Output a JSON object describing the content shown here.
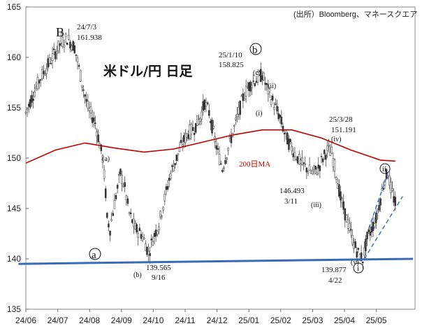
{
  "chart_data": {
    "type": "candlestick",
    "title": "米ドル/円 日足",
    "source": "(出所）Bloomberg、マネースクエア",
    "ylim": [
      135,
      165
    ],
    "yticks": [
      135,
      140,
      145,
      150,
      155,
      160,
      165
    ],
    "xticks": [
      "24/06",
      "24/07",
      "24/08",
      "24/09",
      "24/10",
      "24/11",
      "24/12",
      "25/01",
      "25/02",
      "25/03",
      "25/04",
      "25/05"
    ],
    "price_path": [
      [
        0,
        154.5
      ],
      [
        4,
        156.0
      ],
      [
        10,
        158.0
      ],
      [
        16,
        159.5
      ],
      [
        20,
        160.5
      ],
      [
        24,
        161.5
      ],
      [
        28,
        161.9
      ],
      [
        33,
        161.0
      ],
      [
        38,
        157.5
      ],
      [
        42,
        155.0
      ],
      [
        47,
        153.5
      ],
      [
        52,
        150.0
      ],
      [
        54,
        146.5
      ],
      [
        55,
        144.0
      ],
      [
        57,
        143.0
      ],
      [
        60,
        145.5
      ],
      [
        64,
        148.5
      ],
      [
        67,
        147.0
      ],
      [
        70,
        144.5
      ],
      [
        74,
        143.0
      ],
      [
        78,
        142.5
      ],
      [
        81,
        141.5
      ],
      [
        83,
        140.5
      ],
      [
        86,
        142.0
      ],
      [
        90,
        143.5
      ],
      [
        94,
        146.0
      ],
      [
        98,
        148.5
      ],
      [
        102,
        150.0
      ],
      [
        106,
        151.5
      ],
      [
        110,
        152.5
      ],
      [
        114,
        153.0
      ],
      [
        118,
        154.0
      ],
      [
        121,
        155.5
      ],
      [
        124,
        154.5
      ],
      [
        127,
        152.5
      ],
      [
        130,
        150.5
      ],
      [
        133,
        149.0
      ],
      [
        136,
        150.5
      ],
      [
        140,
        152.5
      ],
      [
        144,
        154.5
      ],
      [
        147,
        156.0
      ],
      [
        150,
        157.0
      ],
      [
        153,
        157.5
      ],
      [
        156,
        157.8
      ],
      [
        160,
        158.3
      ],
      [
        163,
        157.0
      ],
      [
        166,
        156.0
      ],
      [
        169,
        155.0
      ],
      [
        172,
        154.0
      ],
      [
        175,
        152.5
      ],
      [
        178,
        151.5
      ],
      [
        182,
        150.5
      ],
      [
        186,
        149.5
      ],
      [
        190,
        149.0
      ],
      [
        194,
        148.5
      ],
      [
        198,
        149.0
      ],
      [
        201,
        150.0
      ],
      [
        204,
        150.8
      ],
      [
        207,
        150.5
      ],
      [
        210,
        148.5
      ],
      [
        213,
        146.0
      ],
      [
        216,
        144.5
      ],
      [
        219,
        143.0
      ],
      [
        222,
        141.5
      ],
      [
        225,
        140.5
      ],
      [
        228,
        140.0
      ],
      [
        231,
        142.0
      ],
      [
        234,
        143.0
      ],
      [
        237,
        144.0
      ],
      [
        240,
        146.0
      ],
      [
        243,
        148.0
      ],
      [
        245,
        148.5
      ],
      [
        247,
        147.0
      ],
      [
        250,
        145.5
      ]
    ],
    "ma200_path": [
      [
        0,
        149.5
      ],
      [
        20,
        150.8
      ],
      [
        40,
        151.5
      ],
      [
        60,
        151.0
      ],
      [
        80,
        150.6
      ],
      [
        100,
        150.9
      ],
      [
        120,
        151.6
      ],
      [
        140,
        152.3
      ],
      [
        160,
        152.8
      ],
      [
        180,
        152.8
      ],
      [
        200,
        152.0
      ],
      [
        220,
        150.8
      ],
      [
        240,
        149.8
      ],
      [
        250,
        149.7
      ]
    ],
    "ma200_label": "200日MA",
    "support_line": [
      [
        -5,
        139.5
      ],
      [
        262,
        140.0
      ]
    ],
    "channel_lines": [
      [
        [
          229,
          140.0
        ],
        [
          255,
          146.2
        ]
      ],
      [
        [
          232,
          143.0
        ],
        [
          245,
          148.5
        ]
      ]
    ],
    "annotations": {
      "B": {
        "label": "B",
        "date": "24/7/3",
        "value": "161.938"
      },
      "a": "a",
      "a_small": "(a)",
      "b_small": "(b)",
      "low1": {
        "value": "139.565",
        "date": "9/16"
      },
      "b_circle": {
        "label": "b",
        "date": "25/1/10",
        "value": "158.825"
      },
      "c_small": "(c)",
      "ii_small": "(ii)",
      "i_small": "(i)",
      "iv_small": "(iv)",
      "iii_small": "(iii)",
      "v_small": "(v)",
      "mid": {
        "value": "146.493",
        "date": "3/11"
      },
      "high_mar": {
        "date": "25/3/28",
        "value": "151.191"
      },
      "low2": {
        "value": "139.877",
        "date": "4/22"
      },
      "i_circle": "i",
      "ii_circle": "ii"
    }
  }
}
